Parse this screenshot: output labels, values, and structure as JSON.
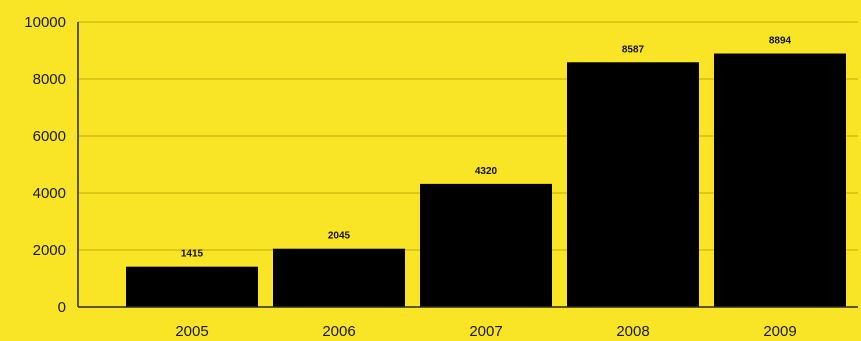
{
  "chart_data": {
    "type": "bar",
    "title": "",
    "xlabel": "",
    "ylabel": "",
    "categories": [
      "2005",
      "2006",
      "2007",
      "2008",
      "2009"
    ],
    "values": [
      1415,
      2045,
      4320,
      8587,
      8894
    ],
    "data_labels": [
      "1415",
      "2045",
      "4320",
      "8587",
      "8894"
    ],
    "ylim": [
      0,
      10000
    ],
    "yticks": [
      0,
      2000,
      4000,
      6000,
      8000,
      10000
    ],
    "ytick_labels": [
      "0",
      "2000",
      "4000",
      "6000",
      "8000",
      "10000"
    ],
    "grid": true,
    "legend": "none",
    "colors": {
      "background": "#f9e526",
      "bar": "#000000",
      "grid": "#c9a800",
      "axis": "#2a2a2a"
    }
  }
}
